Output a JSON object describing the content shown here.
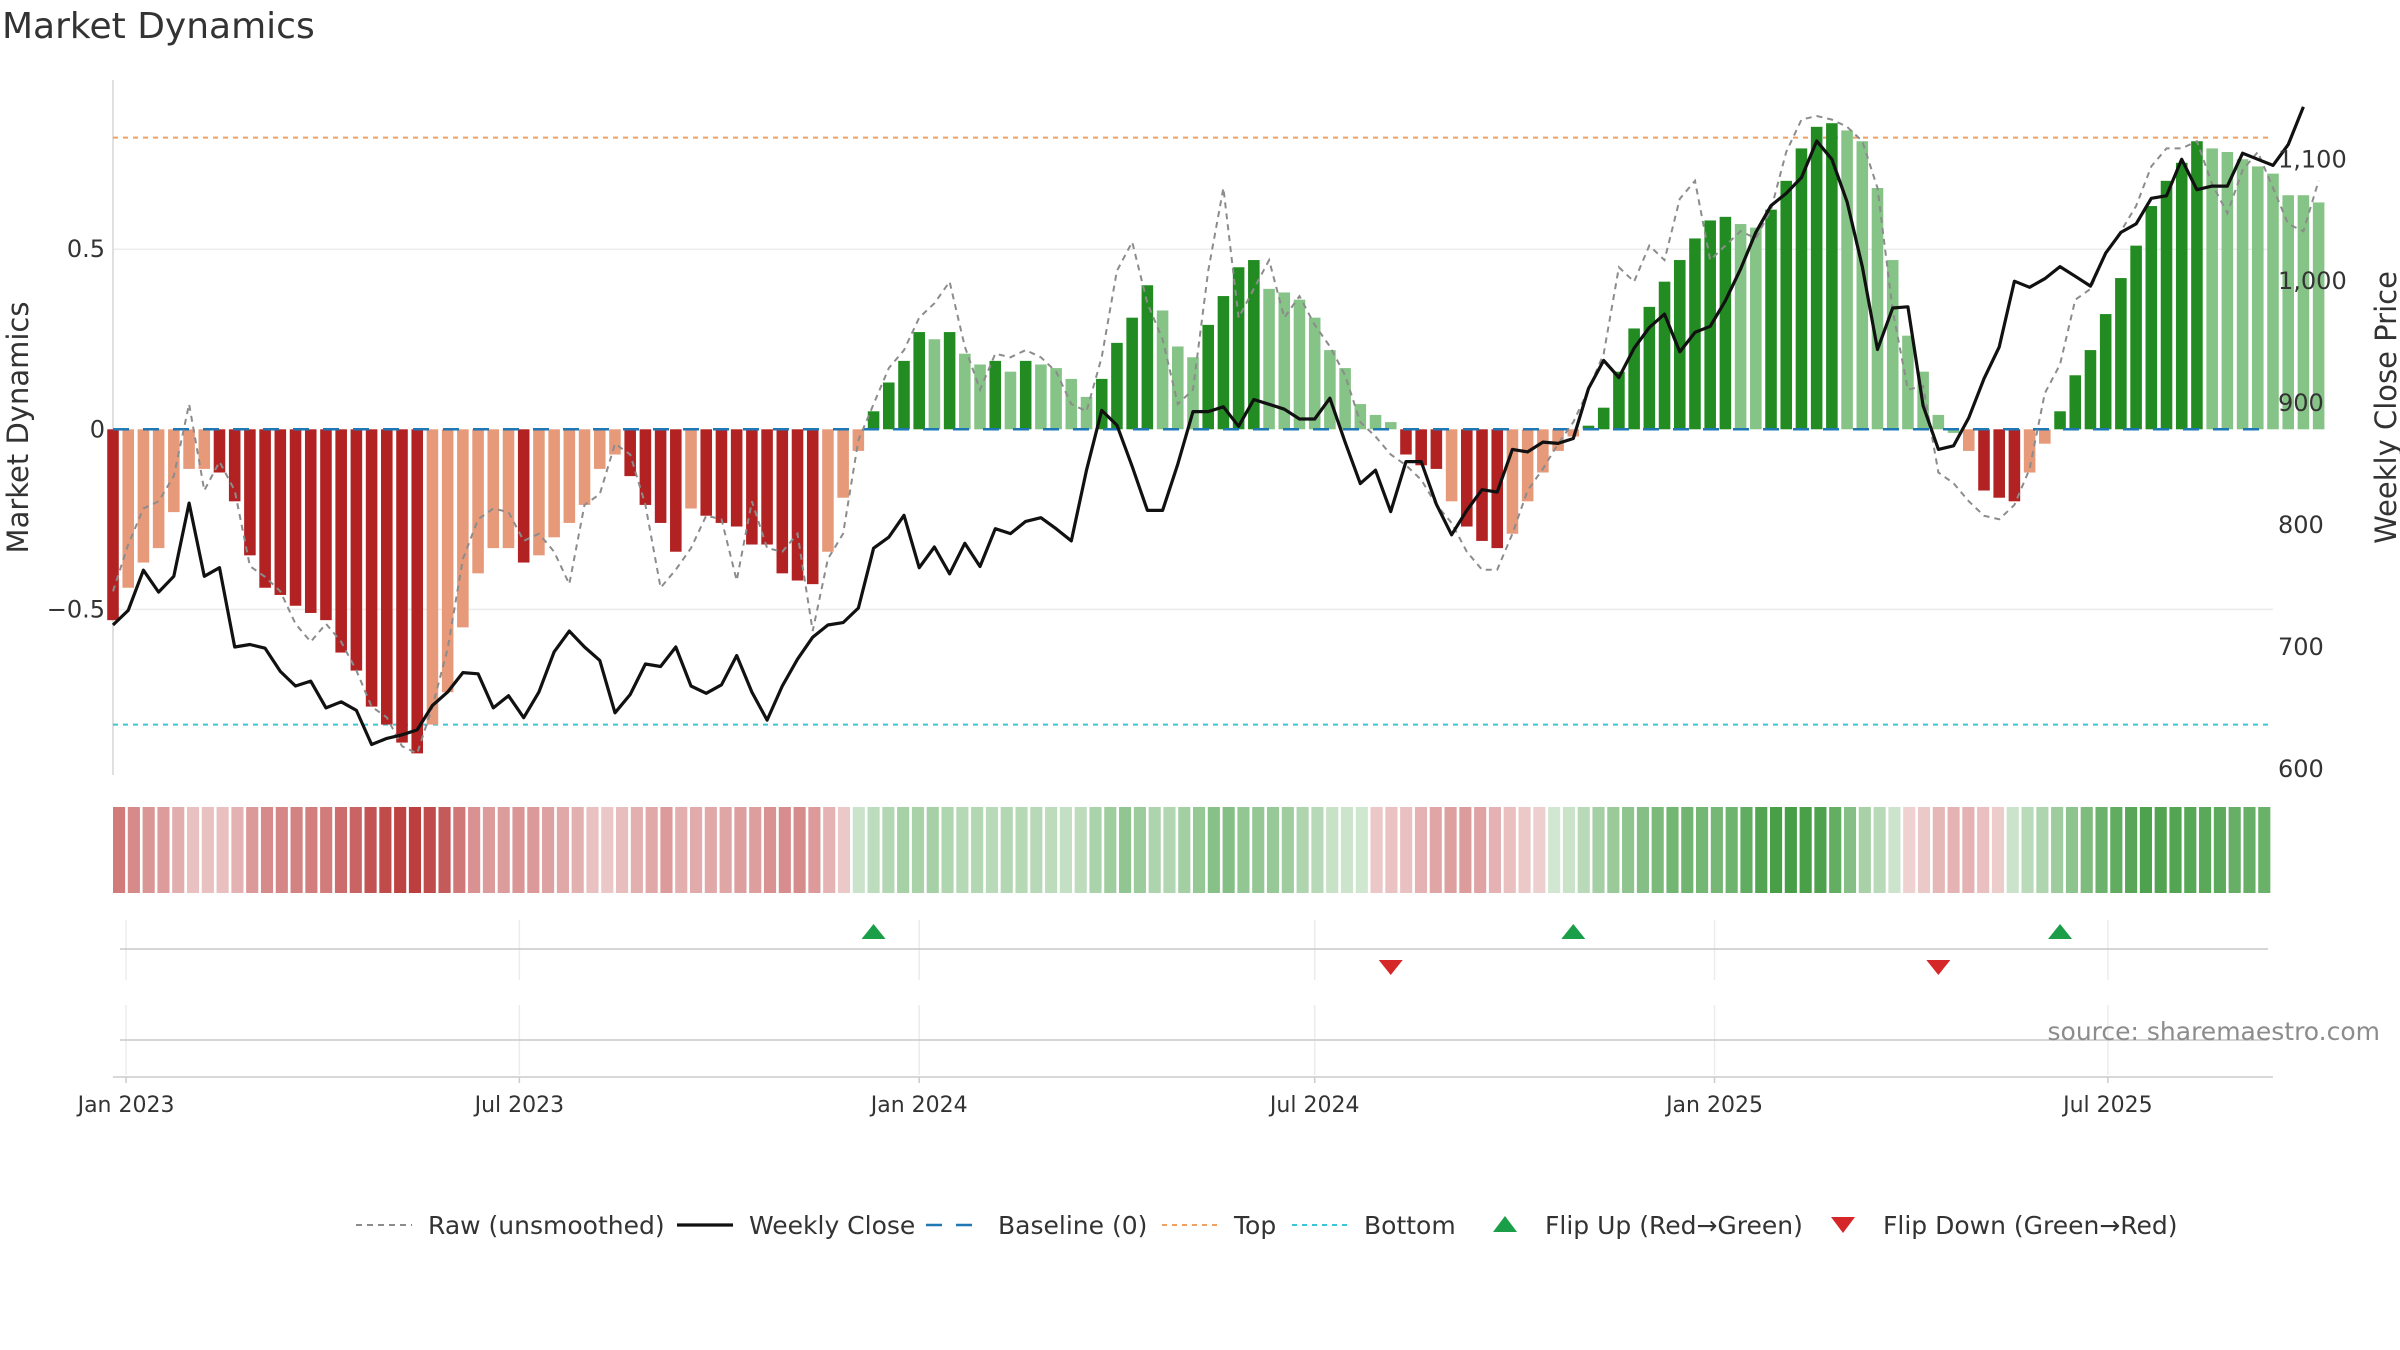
{
  "title": "Market Dynamics",
  "source_label": "source: sharemaestro.com",
  "colors": {
    "strong_green": "#228b22",
    "light_green": "#86c386",
    "strong_red": "#b22222",
    "light_red": "#e69a7a",
    "close_line": "#111111",
    "raw_line": "#8c8c8c",
    "baseline": "#1f77b4",
    "top": "#f0a060",
    "bottom": "#3bc6d6",
    "flip_up": "#1a9e48",
    "flip_down": "#d62728"
  },
  "chart_data": {
    "type": "bar",
    "ylabel": "Market Dynamics",
    "y2label": "Weekly Close Price",
    "ylim": [
      -0.96,
      0.97
    ],
    "y2lim": [
      595,
      1165
    ],
    "yticks": [
      0.5,
      0,
      -0.5
    ],
    "yticklabels": [
      "0.5",
      "0",
      "−0.5"
    ],
    "y2ticks": [
      600,
      700,
      800,
      900,
      1000,
      1100
    ],
    "y2ticklabels": [
      "600",
      "700",
      "800",
      "900",
      "1,000",
      "1,100"
    ],
    "x_start": "2022-12-26",
    "x_end": "2025-09-15",
    "xticks": [
      "2023-01-01",
      "2023-07-01",
      "2024-01-01",
      "2024-07-01",
      "2025-01-01",
      "2025-07-01"
    ],
    "xticklabels": [
      "Jan 2023",
      "Jul 2023",
      "Jan 2024",
      "Jul 2024",
      "Jan 2025",
      "Jul 2025"
    ],
    "top_level": 0.81,
    "bottom_level": -0.82,
    "baseline_level": 0,
    "bar_start_date": "2022-12-26",
    "bar_interval_days": 7,
    "bars": [
      -0.53,
      -0.44,
      -0.37,
      -0.33,
      -0.23,
      -0.11,
      -0.11,
      -0.12,
      -0.2,
      -0.35,
      -0.44,
      -0.46,
      -0.49,
      -0.51,
      -0.53,
      -0.62,
      -0.67,
      -0.77,
      -0.82,
      -0.87,
      -0.9,
      -0.82,
      -0.73,
      -0.55,
      -0.4,
      -0.33,
      -0.33,
      -0.37,
      -0.35,
      -0.3,
      -0.26,
      -0.21,
      -0.11,
      -0.07,
      -0.13,
      -0.21,
      -0.26,
      -0.34,
      -0.22,
      -0.24,
      -0.26,
      -0.27,
      -0.32,
      -0.32,
      -0.4,
      -0.42,
      -0.43,
      -0.34,
      -0.19,
      -0.06,
      0.05,
      0.13,
      0.19,
      0.27,
      0.25,
      0.27,
      0.21,
      0.18,
      0.19,
      0.16,
      0.19,
      0.18,
      0.17,
      0.14,
      0.09,
      0.14,
      0.24,
      0.31,
      0.4,
      0.33,
      0.23,
      0.2,
      0.29,
      0.37,
      0.45,
      0.47,
      0.39,
      0.38,
      0.36,
      0.31,
      0.22,
      0.17,
      0.07,
      0.04,
      0.02,
      -0.07,
      -0.1,
      -0.11,
      -0.2,
      -0.27,
      -0.31,
      -0.33,
      -0.29,
      -0.2,
      -0.12,
      -0.06,
      -0.02,
      0.01,
      0.06,
      0.16,
      0.28,
      0.34,
      0.41,
      0.47,
      0.53,
      0.58,
      0.59,
      0.57,
      0.56,
      0.61,
      0.69,
      0.78,
      0.84,
      0.85,
      0.83,
      0.8,
      0.67,
      0.47,
      0.26,
      0.16,
      0.04,
      -0.01,
      -0.06,
      -0.17,
      -0.19,
      -0.2,
      -0.12,
      -0.04,
      0.05,
      0.15,
      0.22,
      0.32,
      0.42,
      0.51,
      0.62,
      0.69,
      0.74,
      0.8,
      0.78,
      0.77,
      0.75,
      0.73,
      0.71,
      0.65,
      0.65,
      0.63
    ],
    "bar_colors": [
      "strong_red",
      "light_red",
      "light_red",
      "light_red",
      "light_red",
      "light_red",
      "light_red",
      "strong_red",
      "strong_red",
      "strong_red",
      "strong_red",
      "strong_red",
      "strong_red",
      "strong_red",
      "strong_red",
      "strong_red",
      "strong_red",
      "strong_red",
      "strong_red",
      "strong_red",
      "strong_red",
      "light_red",
      "light_red",
      "light_red",
      "light_red",
      "light_red",
      "light_red",
      "strong_red",
      "light_red",
      "light_red",
      "light_red",
      "light_red",
      "light_red",
      "light_red",
      "strong_red",
      "strong_red",
      "strong_red",
      "strong_red",
      "light_red",
      "strong_red",
      "strong_red",
      "strong_red",
      "strong_red",
      "strong_red",
      "strong_red",
      "strong_red",
      "strong_red",
      "light_red",
      "light_red",
      "light_red",
      "strong_green",
      "strong_green",
      "strong_green",
      "strong_green",
      "light_green",
      "strong_green",
      "light_green",
      "light_green",
      "strong_green",
      "light_green",
      "strong_green",
      "light_green",
      "light_green",
      "light_green",
      "light_green",
      "strong_green",
      "strong_green",
      "strong_green",
      "strong_green",
      "light_green",
      "light_green",
      "light_green",
      "strong_green",
      "strong_green",
      "strong_green",
      "strong_green",
      "light_green",
      "light_green",
      "light_green",
      "light_green",
      "light_green",
      "light_green",
      "light_green",
      "light_green",
      "light_green",
      "strong_red",
      "strong_red",
      "strong_red",
      "light_red",
      "strong_red",
      "strong_red",
      "strong_red",
      "light_red",
      "light_red",
      "light_red",
      "light_red",
      "light_red",
      "strong_green",
      "strong_green",
      "strong_green",
      "strong_green",
      "strong_green",
      "strong_green",
      "strong_green",
      "strong_green",
      "strong_green",
      "strong_green",
      "light_green",
      "light_green",
      "strong_green",
      "strong_green",
      "strong_green",
      "strong_green",
      "strong_green",
      "light_green",
      "light_green",
      "light_green",
      "light_green",
      "light_green",
      "light_green",
      "light_green",
      "light_green",
      "light_red",
      "strong_red",
      "strong_red",
      "strong_red",
      "light_red",
      "light_red",
      "strong_green",
      "strong_green",
      "strong_green",
      "strong_green",
      "strong_green",
      "strong_green",
      "strong_green",
      "strong_green",
      "strong_green",
      "strong_green",
      "light_green",
      "light_green",
      "light_green",
      "light_green",
      "light_green",
      "light_green",
      "light_green",
      "light_green",
      "light_green"
    ],
    "raw": [
      -0.45,
      -0.32,
      -0.22,
      -0.2,
      -0.13,
      0.07,
      -0.17,
      -0.09,
      -0.17,
      -0.38,
      -0.41,
      -0.45,
      -0.54,
      -0.59,
      -0.54,
      -0.59,
      -0.67,
      -0.77,
      -0.8,
      -0.88,
      -0.9,
      -0.77,
      -0.61,
      -0.36,
      -0.25,
      -0.22,
      -0.23,
      -0.31,
      -0.29,
      -0.34,
      -0.43,
      -0.21,
      -0.18,
      -0.04,
      -0.07,
      -0.21,
      -0.44,
      -0.39,
      -0.33,
      -0.24,
      -0.25,
      -0.42,
      -0.2,
      -0.33,
      -0.34,
      -0.29,
      -0.56,
      -0.36,
      -0.29,
      -0.03,
      0.07,
      0.17,
      0.22,
      0.31,
      0.35,
      0.41,
      0.23,
      0.11,
      0.21,
      0.2,
      0.22,
      0.2,
      0.16,
      0.07,
      0.05,
      0.2,
      0.44,
      0.52,
      0.35,
      0.25,
      0.07,
      0.11,
      0.44,
      0.67,
      0.31,
      0.39,
      0.47,
      0.31,
      0.37,
      0.29,
      0.23,
      0.15,
      0.02,
      -0.02,
      -0.07,
      -0.1,
      -0.14,
      -0.21,
      -0.26,
      -0.34,
      -0.39,
      -0.39,
      -0.29,
      -0.17,
      -0.11,
      -0.04,
      0.02,
      0.11,
      0.21,
      0.45,
      0.41,
      0.51,
      0.47,
      0.64,
      0.69,
      0.47,
      0.51,
      0.55,
      0.53,
      0.61,
      0.77,
      0.86,
      0.87,
      0.86,
      0.84,
      0.8,
      0.67,
      0.33,
      0.11,
      0.12,
      -0.12,
      -0.15,
      -0.2,
      -0.24,
      -0.25,
      -0.21,
      -0.11,
      0.1,
      0.18,
      0.36,
      0.39,
      0.49,
      0.55,
      0.62,
      0.73,
      0.78,
      0.78,
      0.8,
      0.68,
      0.6,
      0.72,
      0.77,
      0.67,
      0.57,
      0.55,
      0.69
    ],
    "close": [
      720,
      730,
      765,
      745,
      755,
      815,
      760,
      760,
      700,
      700,
      695,
      680,
      670,
      675,
      655,
      660,
      655,
      635,
      610,
      615,
      630,
      640,
      630,
      650,
      660,
      640,
      645,
      640,
      615,
      620,
      615,
      625,
      650,
      665,
      650,
      640,
      630,
      615,
      630,
      635,
      640,
      615,
      610,
      620,
      625,
      605,
      620,
      650,
      680,
      700,
      710,
      740,
      780,
      795,
      800,
      805,
      790,
      780,
      760,
      770,
      760,
      765,
      770,
      780,
      782,
      790,
      770,
      820,
      815,
      810,
      790,
      780,
      795,
      800,
      820,
      860,
      880,
      860,
      875,
      875,
      880,
      840,
      840,
      830,
      815,
      820,
      835,
      820,
      810,
      825,
      830,
      820,
      830,
      815,
      805,
      795,
      840,
      855,
      870,
      880,
      855,
      895,
      930,
      945,
      960,
      950,
      935,
      965,
      985,
      995,
      1010,
      1030,
      1060,
      1070,
      1090,
      1070,
      1040,
      1020,
      1005,
      970,
      945,
      940,
      930,
      900,
      865,
      865,
      870,
      880,
      890,
      905,
      930,
      985,
      995,
      1010,
      1010,
      1030,
      1045,
      1060,
      1080,
      1090,
      1100,
      1095,
      1085,
      1090,
      1100,
      1110,
      1120,
      1140
    ],
    "close_points": [
      [
        "2022-12-26",
        718
      ],
      [
        "2023-01-02",
        730
      ],
      [
        "2023-01-09",
        763
      ],
      [
        "2023-01-16",
        745
      ],
      [
        "2023-01-23",
        758
      ],
      [
        "2023-01-30",
        818
      ],
      [
        "2023-02-06",
        758
      ],
      [
        "2023-02-13",
        765
      ],
      [
        "2023-02-20",
        700
      ],
      [
        "2023-02-27",
        702
      ],
      [
        "2023-03-06",
        699
      ],
      [
        "2023-03-13",
        680
      ],
      [
        "2023-03-20",
        668
      ],
      [
        "2023-03-27",
        672
      ],
      [
        "2023-04-03",
        650
      ],
      [
        "2023-04-10",
        655
      ],
      [
        "2023-04-17",
        648
      ],
      [
        "2023-04-24",
        620
      ],
      [
        "2023-05-01",
        625
      ],
      [
        "2023-05-08",
        628
      ],
      [
        "2023-05-15",
        632
      ],
      [
        "2023-05-22",
        652
      ],
      [
        "2023-05-29",
        663
      ],
      [
        "2023-06-05",
        679
      ],
      [
        "2023-06-12",
        678
      ],
      [
        "2023-06-19",
        650
      ],
      [
        "2023-06-26",
        660
      ],
      [
        "2023-07-03",
        642
      ],
      [
        "2023-07-10",
        663
      ],
      [
        "2023-07-17",
        696
      ],
      [
        "2023-07-24",
        713
      ],
      [
        "2023-07-31",
        700
      ],
      [
        "2023-08-07",
        689
      ],
      [
        "2023-08-14",
        646
      ],
      [
        "2023-08-21",
        661
      ],
      [
        "2023-08-28",
        686
      ],
      [
        "2023-09-04",
        684
      ],
      [
        "2023-09-11",
        700
      ],
      [
        "2023-09-18",
        668
      ],
      [
        "2023-09-25",
        662
      ],
      [
        "2023-10-02",
        669
      ],
      [
        "2023-10-09",
        693
      ],
      [
        "2023-10-16",
        663
      ],
      [
        "2023-10-23",
        640
      ],
      [
        "2023-10-30",
        668
      ],
      [
        "2023-11-06",
        690
      ],
      [
        "2023-11-13",
        708
      ],
      [
        "2023-11-20",
        718
      ],
      [
        "2023-11-27",
        720
      ],
      [
        "2023-12-04",
        732
      ],
      [
        "2023-12-11",
        781
      ],
      [
        "2023-12-18",
        790
      ],
      [
        "2023-12-25",
        808
      ],
      [
        "2024-01-01",
        765
      ],
      [
        "2024-01-08",
        782
      ],
      [
        "2024-01-15",
        760
      ],
      [
        "2024-01-22",
        785
      ],
      [
        "2024-01-29",
        766
      ],
      [
        "2024-02-05",
        797
      ],
      [
        "2024-02-12",
        793
      ],
      [
        "2024-02-19",
        803
      ],
      [
        "2024-02-26",
        806
      ],
      [
        "2024-03-04",
        797
      ],
      [
        "2024-03-11",
        787
      ],
      [
        "2024-03-18",
        845
      ],
      [
        "2024-03-25",
        894
      ],
      [
        "2024-04-01",
        882
      ],
      [
        "2024-04-08",
        848
      ],
      [
        "2024-04-15",
        812
      ],
      [
        "2024-04-22",
        812
      ],
      [
        "2024-04-29",
        850
      ],
      [
        "2024-05-06",
        893
      ],
      [
        "2024-05-13",
        893
      ],
      [
        "2024-05-20",
        897
      ],
      [
        "2024-05-27",
        881
      ],
      [
        "2024-06-03",
        903
      ],
      [
        "2024-06-10",
        899
      ],
      [
        "2024-06-17",
        895
      ],
      [
        "2024-06-24",
        887
      ],
      [
        "2024-07-01",
        887
      ],
      [
        "2024-07-08",
        904
      ],
      [
        "2024-07-15",
        868
      ],
      [
        "2024-07-22",
        834
      ],
      [
        "2024-07-29",
        845
      ],
      [
        "2024-08-05",
        811
      ],
      [
        "2024-08-12",
        852
      ],
      [
        "2024-08-19",
        852
      ],
      [
        "2024-08-26",
        817
      ],
      [
        "2024-09-02",
        792
      ],
      [
        "2024-09-09",
        812
      ],
      [
        "2024-09-16",
        829
      ],
      [
        "2024-09-23",
        827
      ],
      [
        "2024-09-30",
        862
      ],
      [
        "2024-10-07",
        860
      ],
      [
        "2024-10-14",
        868
      ],
      [
        "2024-10-21",
        867
      ],
      [
        "2024-10-28",
        871
      ],
      [
        "2024-11-04",
        912
      ],
      [
        "2024-11-11",
        935
      ],
      [
        "2024-11-18",
        921
      ],
      [
        "2024-11-25",
        945
      ],
      [
        "2024-12-02",
        962
      ],
      [
        "2024-12-09",
        973
      ],
      [
        "2024-12-16",
        942
      ],
      [
        "2024-12-23",
        958
      ],
      [
        "2024-12-30",
        963
      ],
      [
        "2025-01-06",
        984
      ],
      [
        "2025-01-13",
        1010
      ],
      [
        "2025-01-20",
        1040
      ],
      [
        "2025-01-27",
        1062
      ],
      [
        "2025-02-03",
        1072
      ],
      [
        "2025-02-10",
        1085
      ],
      [
        "2025-02-17",
        1115
      ],
      [
        "2025-02-24",
        1100
      ],
      [
        "2025-03-03",
        1065
      ],
      [
        "2025-03-10",
        1012
      ],
      [
        "2025-03-17",
        944
      ],
      [
        "2025-03-24",
        978
      ],
      [
        "2025-03-31",
        979
      ],
      [
        "2025-04-07",
        898
      ],
      [
        "2025-04-14",
        862
      ],
      [
        "2025-04-21",
        865
      ],
      [
        "2025-04-28",
        888
      ],
      [
        "2025-05-05",
        920
      ],
      [
        "2025-05-12",
        946
      ],
      [
        "2025-05-19",
        1000
      ],
      [
        "2025-05-26",
        995
      ],
      [
        "2025-06-02",
        1002
      ],
      [
        "2025-06-09",
        1012
      ],
      [
        "2025-06-16",
        1004
      ],
      [
        "2025-06-23",
        996
      ],
      [
        "2025-06-30",
        1023
      ],
      [
        "2025-07-07",
        1040
      ],
      [
        "2025-07-14",
        1047
      ],
      [
        "2025-07-21",
        1068
      ],
      [
        "2025-07-28",
        1070
      ],
      [
        "2025-08-04",
        1100
      ],
      [
        "2025-08-11",
        1075
      ],
      [
        "2025-08-18",
        1078
      ],
      [
        "2025-08-25",
        1078
      ],
      [
        "2025-09-01",
        1105
      ],
      [
        "2025-09-08",
        1100
      ],
      [
        "2025-09-15",
        1095
      ],
      [
        "2025-09-22",
        1112
      ],
      [
        "2025-09-29",
        1143
      ]
    ],
    "flips": [
      {
        "type": "up",
        "date": "2023-12-11"
      },
      {
        "type": "down",
        "date": "2024-08-05"
      },
      {
        "type": "up",
        "date": "2024-10-28"
      },
      {
        "type": "down",
        "date": "2025-04-14"
      },
      {
        "type": "up",
        "date": "2025-06-09"
      }
    ],
    "legend": [
      {
        "key": "raw",
        "label": "Raw (unsmoothed)"
      },
      {
        "key": "close",
        "label": "Weekly Close"
      },
      {
        "key": "baseline",
        "label": "Baseline (0)"
      },
      {
        "key": "top",
        "label": "Top"
      },
      {
        "key": "bottom",
        "label": "Bottom"
      },
      {
        "key": "flip_up",
        "label": "Flip Up (Red→Green)"
      },
      {
        "key": "flip_down",
        "label": "Flip Down (Green→Red)"
      }
    ]
  }
}
